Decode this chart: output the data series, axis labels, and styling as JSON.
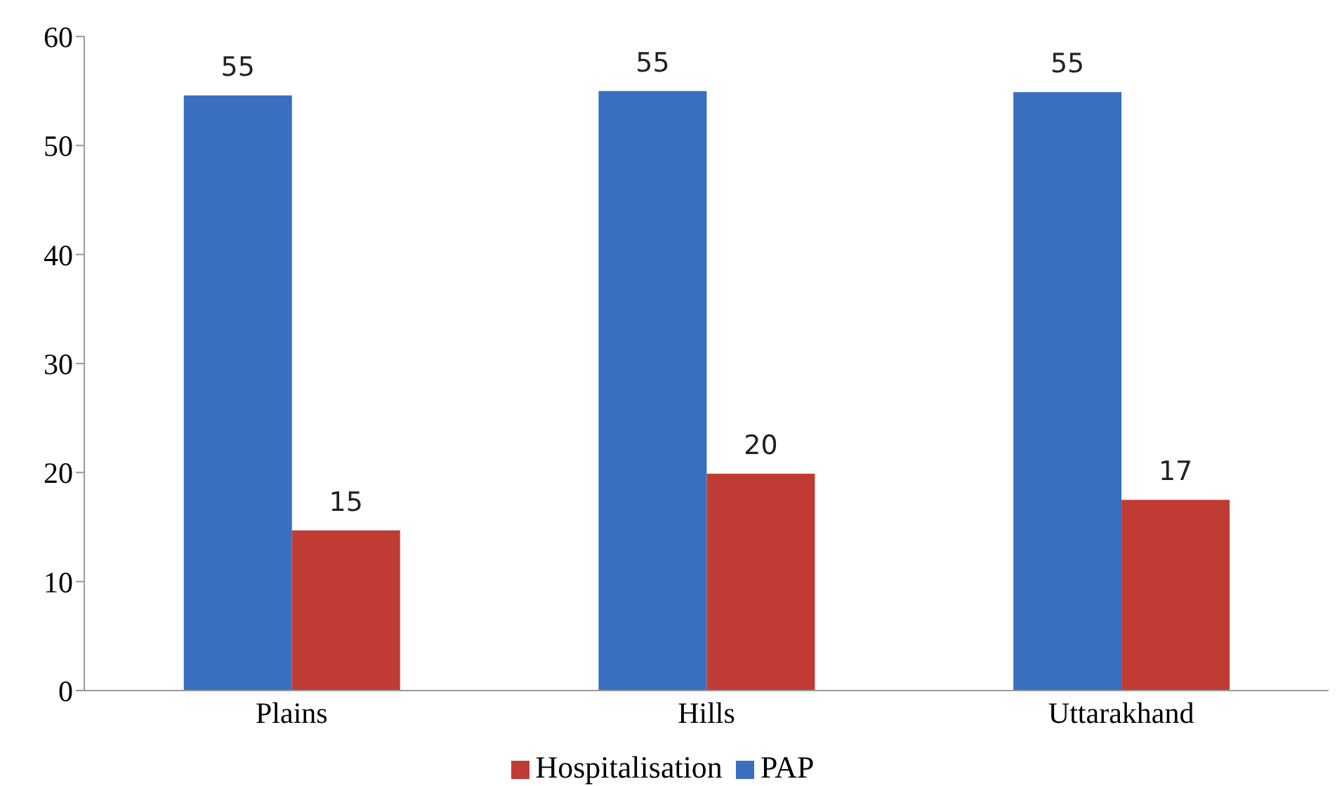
{
  "chart_data": {
    "type": "bar",
    "categories": [
      "Plains",
      "Hills",
      "Uttarakhand"
    ],
    "series": [
      {
        "name": "PAP",
        "color": "#3a6fbf",
        "values": [
          54.6,
          55.0,
          54.9
        ],
        "value_labels": [
          "55",
          "55",
          "55"
        ]
      },
      {
        "name": "Hospitalisation",
        "color": "#c13b35",
        "values": [
          14.7,
          19.9,
          17.5
        ],
        "value_labels": [
          "15",
          "20",
          "17"
        ]
      }
    ],
    "ylim": [
      0,
      60
    ],
    "yticks": [
      0,
      10,
      20,
      30,
      40,
      50,
      60
    ],
    "grid": false,
    "legend": "bottom"
  }
}
